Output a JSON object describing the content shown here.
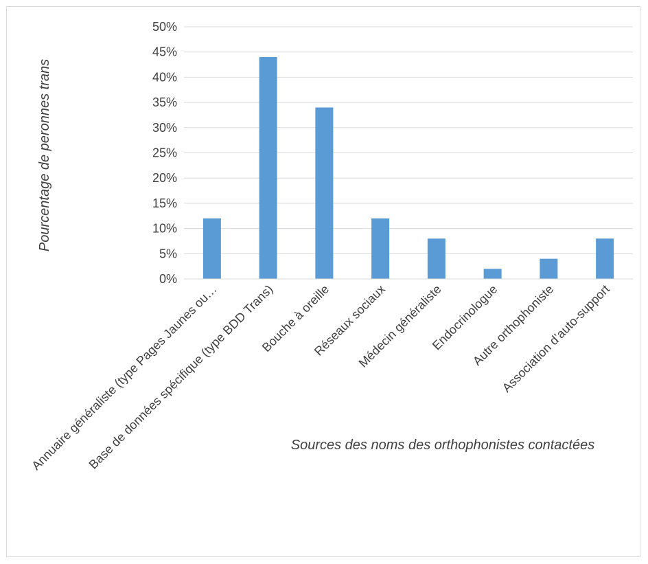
{
  "chart_data": {
    "type": "bar",
    "categories": [
      "Annuaire généraliste (type Pages Jaunes ou…",
      "Base de données spécifique (type BDD Trans)",
      "Bouche à oreille",
      "Réseaux sociaux",
      "Médecin généraliste",
      "Endocrinologue",
      "Autre orthophoniste",
      "Association d’auto-support"
    ],
    "values": [
      12,
      44,
      34,
      12,
      8,
      2,
      4,
      8
    ],
    "value_unit": "%",
    "title": "",
    "xlabel": "Sources des noms des orthophonistes contactées",
    "ylabel": "Pourcentage de peronnes trans",
    "ylim": [
      0,
      50
    ],
    "yticks": [
      "0%",
      "5%",
      "10%",
      "15%",
      "20%",
      "25%",
      "30%",
      "35%",
      "40%",
      "45%",
      "50%"
    ],
    "grid": true,
    "legend": "none",
    "colors": {
      "bar": "#5b9bd5",
      "grid": "#d9d9d9",
      "text": "#404040"
    }
  }
}
